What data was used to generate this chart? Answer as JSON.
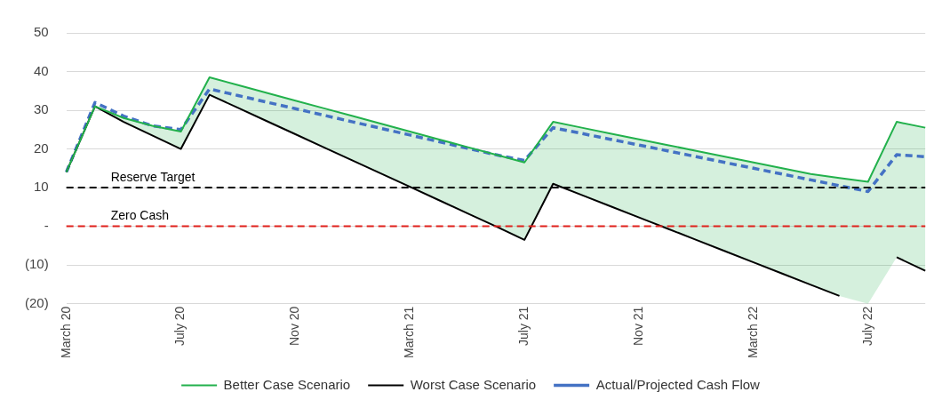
{
  "chart_data": {
    "type": "line",
    "categories": [
      "March 20",
      null,
      null,
      null,
      "July 20",
      null,
      null,
      null,
      "Nov 20",
      null,
      null,
      null,
      "March 21",
      null,
      null,
      null,
      "July 21",
      null,
      null,
      null,
      "Nov 21",
      null,
      null,
      null,
      "March 22",
      null,
      null,
      null,
      "July 22",
      null,
      null
    ],
    "series": [
      {
        "name": "Better Case Scenario",
        "color": "#22b14c",
        "values": [
          14,
          31,
          28,
          26,
          24.5,
          38.5,
          36.5,
          34.5,
          32.5,
          30.5,
          28.5,
          26.5,
          24.5,
          22.5,
          20.5,
          18.5,
          16.5,
          27,
          25.5,
          24,
          22.5,
          21,
          19.5,
          18,
          16.5,
          15,
          13.5,
          12.5,
          11.5,
          27,
          25.5
        ],
        "lower": [
          14,
          31,
          27,
          23.5,
          20,
          34,
          30.6,
          27.2,
          23.8,
          20.4,
          17,
          13.6,
          10.2,
          6.8,
          3.4,
          0,
          -3.5,
          11,
          8.1,
          5.2,
          2.3,
          -0.6,
          -3.5,
          -6.4,
          -9.3,
          -12.2,
          -15.1,
          -18,
          -20,
          -8,
          -11.5
        ],
        "upper": [
          14,
          31,
          28,
          26,
          24.5,
          38.5,
          36.5,
          34.5,
          32.5,
          30.5,
          28.5,
          26.5,
          24.5,
          22.5,
          20.5,
          18.5,
          16.5,
          27,
          25.5,
          24,
          22.5,
          21,
          19.5,
          18,
          16.5,
          15,
          13.5,
          12.5,
          11.5,
          27,
          25.5
        ]
      },
      {
        "name": "Worst Case Scenario",
        "color": "#000000",
        "values": [
          14,
          31,
          27,
          23.5,
          20,
          34,
          30.6,
          27.2,
          23.8,
          20.4,
          17,
          13.6,
          10.2,
          6.8,
          3.4,
          0,
          -3.5,
          11,
          8.1,
          5.2,
          2.3,
          -0.6,
          -3.5,
          -6.4,
          -9.3,
          -12.2,
          -15.1,
          -18,
          null,
          -8,
          -11.5
        ]
      },
      {
        "name": "Actual/Projected Cash Flow",
        "color": "#4472c4",
        "line_style": "dashed",
        "values": [
          14,
          32,
          28.5,
          26,
          25,
          35.5,
          33.8,
          32.1,
          30.4,
          28.7,
          27,
          25.3,
          23.6,
          21.9,
          20.2,
          18.5,
          17,
          25.5,
          24,
          22.5,
          21,
          19.5,
          18,
          16.5,
          15,
          13.5,
          12,
          10.5,
          9,
          18.5,
          18
        ]
      }
    ],
    "ylim": [
      -20,
      50
    ],
    "yticks": [
      {
        "value": -20,
        "label": "(20)"
      },
      {
        "value": -10,
        "label": "(10)"
      },
      {
        "value": 0,
        "label": "-"
      },
      10,
      20,
      30,
      40,
      50
    ],
    "ref_lines": [
      {
        "axis": "y",
        "value": 10,
        "label": "Reserve Target",
        "color": "#000000",
        "line_style": "dashed"
      },
      {
        "axis": "y",
        "value": 0,
        "label": "Zero Cash",
        "color": "#e0201b",
        "line_style": "dashed"
      }
    ],
    "grid": "y",
    "legend": "bottom",
    "marker": "none"
  }
}
